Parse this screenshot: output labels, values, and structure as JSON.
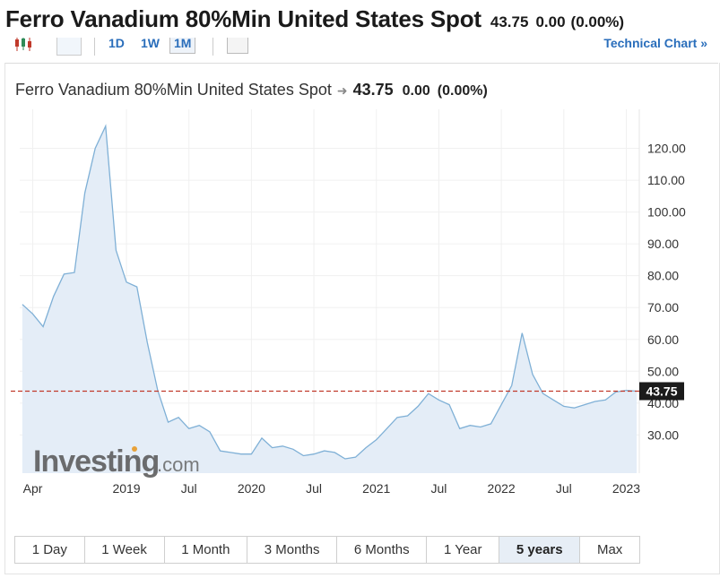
{
  "header": {
    "title": "Ferro Vanadium 80%Min United States Spot",
    "price": "43.75",
    "change": "0.00",
    "change_pct": "(0.00%)"
  },
  "toolbar": {
    "intervals": [
      "1D",
      "1W",
      "1M"
    ],
    "active_interval": "1M",
    "technical_chart_label": "Technical Chart »"
  },
  "chart_header": {
    "name": "Ferro Vanadium 80%Min United States Spot",
    "price": "43.75",
    "change": "0.00",
    "change_pct": "(0.00%)"
  },
  "watermark": {
    "brand": "Investing",
    "suffix": ".com"
  },
  "range_buttons": [
    "1 Day",
    "1 Week",
    "1 Month",
    "3 Months",
    "6 Months",
    "1 Year",
    "5 years",
    "Max"
  ],
  "active_range": "5 years",
  "colors": {
    "line": "#7fb0d6",
    "fill": "#e4edf7",
    "last_price_line": "#c0392b",
    "price_tag_bg": "#1b1b1b",
    "active_range_bg": "#e7eef6"
  },
  "chart_data": {
    "type": "area",
    "x_tick_labels": [
      "Apr",
      "2019",
      "Jul",
      "2020",
      "Jul",
      "2021",
      "Jul",
      "2022",
      "Jul",
      "2023"
    ],
    "y_tick_labels": [
      "30.00",
      "40.00",
      "50.00",
      "60.00",
      "70.00",
      "80.00",
      "90.00",
      "100.00",
      "110.00",
      "120.00"
    ],
    "ylim": [
      18,
      130
    ],
    "last_price_label": "43.75",
    "last_price": 43.75,
    "grid": true,
    "series": [
      {
        "x": [
          "2018-03",
          "2018-04",
          "2018-05",
          "2018-06",
          "2018-07",
          "2018-08",
          "2018-09",
          "2018-10",
          "2018-11",
          "2018-12",
          "2019-01",
          "2019-02",
          "2019-03",
          "2019-04",
          "2019-05",
          "2019-06",
          "2019-07",
          "2019-08",
          "2019-09",
          "2019-10",
          "2019-11",
          "2019-12",
          "2020-01",
          "2020-02",
          "2020-03",
          "2020-04",
          "2020-05",
          "2020-06",
          "2020-07",
          "2020-08",
          "2020-09",
          "2020-10",
          "2020-11",
          "2020-12",
          "2021-01",
          "2021-02",
          "2021-03",
          "2021-04",
          "2021-05",
          "2021-06",
          "2021-07",
          "2021-08",
          "2021-09",
          "2021-10",
          "2021-11",
          "2021-12",
          "2022-01",
          "2022-02",
          "2022-03",
          "2022-04",
          "2022-05",
          "2022-06",
          "2022-07",
          "2022-08",
          "2022-09",
          "2022-10",
          "2022-11",
          "2022-12",
          "2023-01",
          "2023-02"
        ],
        "values": [
          71,
          68,
          64,
          73.5,
          80.5,
          81,
          106,
          120,
          127,
          88,
          78,
          76.5,
          59,
          44,
          34,
          35.5,
          32,
          33,
          31,
          25,
          24.5,
          24,
          24,
          29,
          26,
          26.5,
          25.5,
          23.5,
          24,
          25,
          24.5,
          22.5,
          23,
          26,
          28.5,
          32,
          35.5,
          36,
          39,
          43,
          41,
          39.5,
          32,
          33,
          32.5,
          33.5,
          39.5,
          45.5,
          62,
          49,
          43,
          41,
          39,
          38.5,
          39.5,
          40.5,
          41,
          43.5,
          44,
          43.75
        ]
      }
    ]
  }
}
